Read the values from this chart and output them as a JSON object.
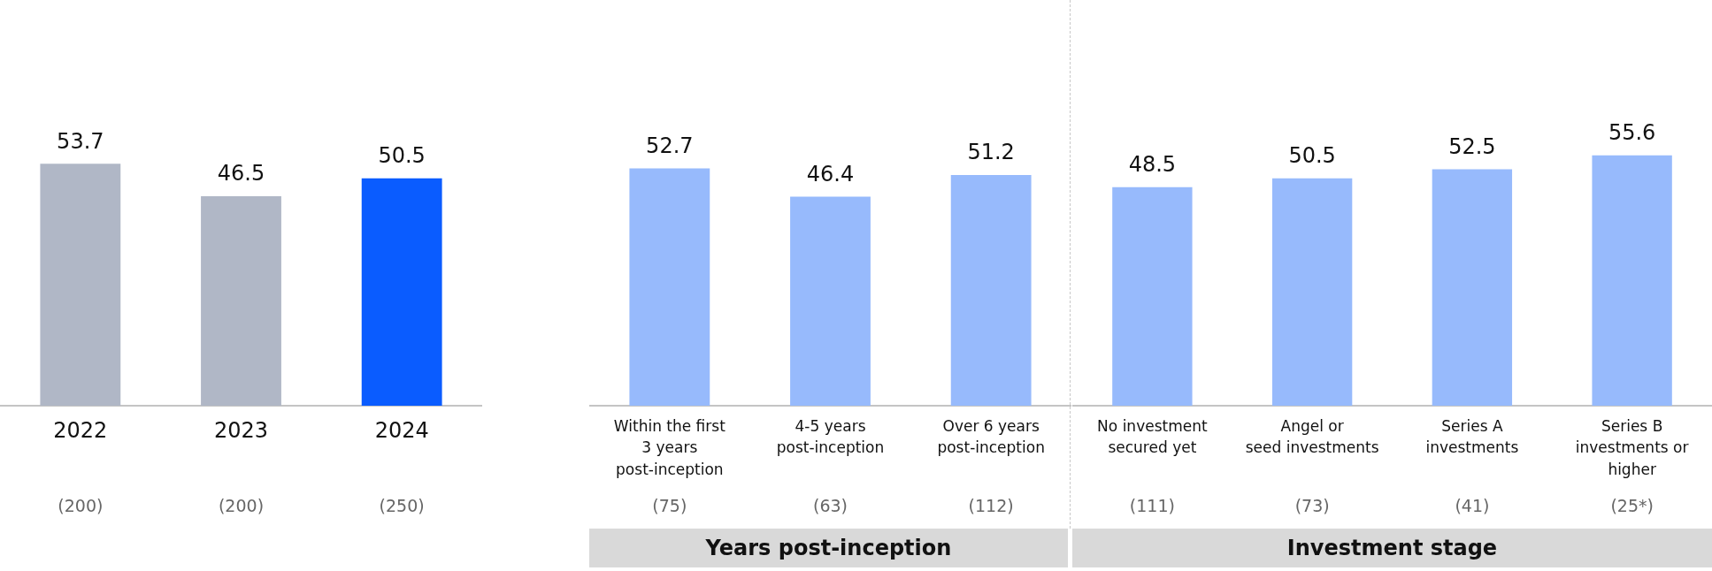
{
  "chart_data": [
    {
      "type": "bar",
      "categories": [
        "2022",
        "2023",
        "2024"
      ],
      "values": [
        53.7,
        46.5,
        50.5
      ],
      "colors": [
        "#b0b7c6",
        "#b0b7c6",
        "#0a5cff"
      ],
      "data_labels": true,
      "grid": false,
      "legend": false,
      "tick_labels": "x",
      "annotations": [
        "(200)",
        "(200)",
        "(250)"
      ]
    },
    {
      "type": "bar",
      "xlabel": "Years post-inception",
      "categories": [
        "Within the first\n3 years\npost-inception",
        "4-5 years\npost-inception",
        "Over 6 years\npost-inception"
      ],
      "values": [
        52.7,
        46.4,
        51.2
      ],
      "color": "#97bafc",
      "data_labels": true,
      "grid": false,
      "legend": false,
      "tick_labels": "x",
      "annotations": [
        "(75)",
        "(63)",
        "(112)"
      ]
    },
    {
      "type": "bar",
      "xlabel": "Investment stage",
      "categories": [
        "No investment\nsecured yet",
        "Angel or\nseed investments",
        "Series A\ninvestments",
        "Series B\ninvestments or\nhigher"
      ],
      "values": [
        48.5,
        50.5,
        52.5,
        55.6
      ],
      "color": "#97bafc",
      "data_labels": true,
      "grid": false,
      "legend": false,
      "tick_labels": "x",
      "annotations": [
        "(111)",
        "(73)",
        "(41)",
        "(25*)"
      ]
    }
  ]
}
